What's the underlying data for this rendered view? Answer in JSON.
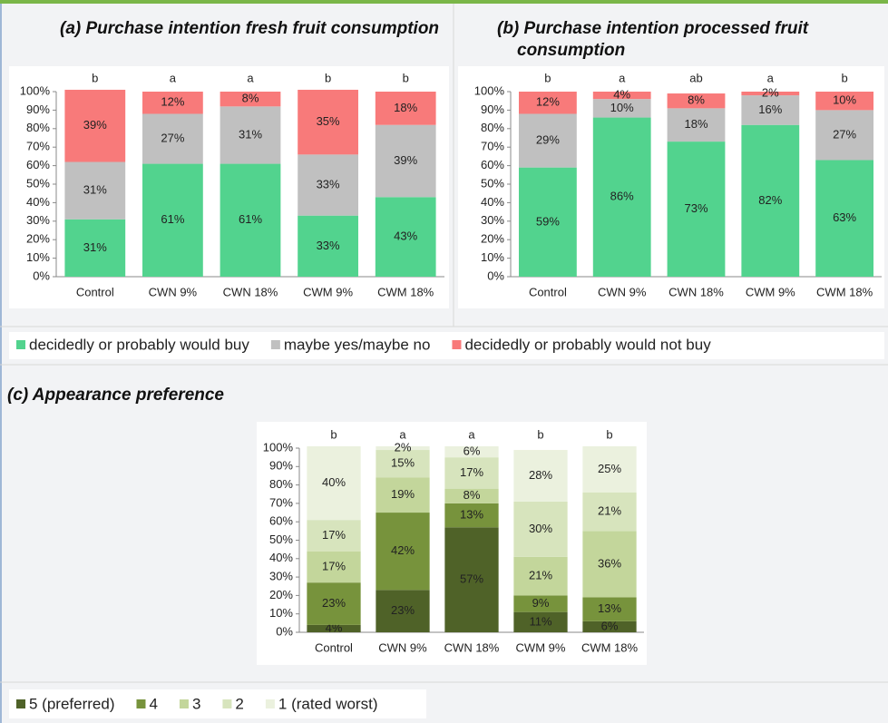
{
  "chart_data": [
    {
      "type": "bar",
      "stacked": true,
      "title": "(a) Purchase intention fresh fruit consumption",
      "categories": [
        "Control",
        "CWN 9%",
        "CWN 18%",
        "CWM 9%",
        "CWM 18%"
      ],
      "annotations": [
        "b",
        "a",
        "a",
        "b",
        "b"
      ],
      "series": [
        {
          "name": "decidedly or probably would buy",
          "color": "#52d38e",
          "values": [
            31,
            61,
            61,
            33,
            43
          ],
          "value_labels": [
            "31%",
            "61%",
            "61%",
            "33%",
            "43%"
          ]
        },
        {
          "name": "maybe yes/maybe no",
          "color": "#c0c0c0",
          "values": [
            31,
            27,
            31,
            33,
            39
          ],
          "value_labels": [
            "31%",
            "27%",
            "31%",
            "33%",
            "39%"
          ]
        },
        {
          "name": "decidedly or probably would not buy",
          "color": "#f87a7a",
          "values": [
            39,
            12,
            8,
            35,
            18
          ],
          "value_labels": [
            "39%",
            "12%",
            "8%",
            "35%",
            "18%"
          ]
        }
      ],
      "ylim": [
        0,
        100
      ],
      "yticks": [
        {
          "value": 0,
          "label": "0%"
        },
        {
          "value": 10,
          "label": "10%"
        },
        {
          "value": 20,
          "label": "20%"
        },
        {
          "value": 30,
          "label": "30%"
        },
        {
          "value": 40,
          "label": "40%"
        },
        {
          "value": 50,
          "label": "50%"
        },
        {
          "value": 60,
          "label": "60%"
        },
        {
          "value": 70,
          "label": "70%"
        },
        {
          "value": 80,
          "label": "80%"
        },
        {
          "value": 90,
          "label": "90%"
        },
        {
          "value": 100,
          "label": "100%"
        }
      ]
    },
    {
      "type": "bar",
      "stacked": true,
      "title": "(b) Purchase intention processed fruit consumption",
      "categories": [
        "Control",
        "CWN 9%",
        "CWN 18%",
        "CWM 9%",
        "CWM 18%"
      ],
      "annotations": [
        "b",
        "a",
        "ab",
        "a",
        "b"
      ],
      "series": [
        {
          "color": "#52d38e",
          "values": [
            59,
            86,
            73,
            82,
            63
          ],
          "value_labels": [
            "59%",
            "86%",
            "73%",
            "82%",
            "63%"
          ]
        },
        {
          "color": "#c0c0c0",
          "values": [
            29,
            10,
            18,
            16,
            27
          ],
          "value_labels": [
            "29%",
            "10%",
            "18%",
            "16%",
            "27%"
          ]
        },
        {
          "color": "#f87a7a",
          "values": [
            12,
            4,
            8,
            2,
            10
          ],
          "value_labels": [
            "12%",
            "4%",
            "8%",
            "2%",
            "10%"
          ]
        }
      ],
      "ylim": [
        0,
        100
      ],
      "yticks": [
        {
          "value": 0,
          "label": "0%"
        },
        {
          "value": 10,
          "label": "10%"
        },
        {
          "value": 20,
          "label": "20%"
        },
        {
          "value": 30,
          "label": "30%"
        },
        {
          "value": 40,
          "label": "40%"
        },
        {
          "value": 50,
          "label": "50%"
        },
        {
          "value": 60,
          "label": "60%"
        },
        {
          "value": 70,
          "label": "70%"
        },
        {
          "value": 80,
          "label": "80%"
        },
        {
          "value": 90,
          "label": "90%"
        },
        {
          "value": 100,
          "label": "100%"
        }
      ]
    },
    {
      "type": "bar",
      "stacked": true,
      "title": "(c) Appearance preference",
      "categories": [
        "Control",
        "CWN 9%",
        "CWN 18%",
        "CWM 9%",
        "CWM 18%"
      ],
      "annotations": [
        "b",
        "a",
        "a",
        "b",
        "b"
      ],
      "series": [
        {
          "name": "5 (preferred)",
          "color": "#4f6228",
          "values": [
            4,
            23,
            57,
            11,
            6
          ],
          "value_labels": [
            "4%",
            "23%",
            "57%",
            "11%",
            "6%"
          ]
        },
        {
          "name": "4",
          "color": "#77933c",
          "values": [
            23,
            42,
            13,
            9,
            13
          ],
          "value_labels": [
            "23%",
            "42%",
            "13%",
            "9%",
            "13%"
          ]
        },
        {
          "name": "3",
          "color": "#c3d69b",
          "values": [
            17,
            19,
            8,
            21,
            36
          ],
          "value_labels": [
            "17%",
            "19%",
            "8%",
            "21%",
            "36%"
          ]
        },
        {
          "name": "2",
          "color": "#d7e4bd",
          "values": [
            17,
            15,
            17,
            30,
            21
          ],
          "value_labels": [
            "17%",
            "15%",
            "17%",
            "30%",
            "21%"
          ]
        },
        {
          "name": "1 (rated worst)",
          "color": "#ebf1de",
          "values": [
            40,
            2,
            6,
            28,
            25
          ],
          "value_labels": [
            "40%",
            "2%",
            "6%",
            "28%",
            "25%"
          ]
        }
      ],
      "ylim": [
        0,
        100
      ],
      "yticks": [
        {
          "value": 0,
          "label": "0%"
        },
        {
          "value": 10,
          "label": "10%"
        },
        {
          "value": 20,
          "label": "20%"
        },
        {
          "value": 30,
          "label": "30%"
        },
        {
          "value": 40,
          "label": "40%"
        },
        {
          "value": 50,
          "label": "50%"
        },
        {
          "value": 60,
          "label": "60%"
        },
        {
          "value": 70,
          "label": "70%"
        },
        {
          "value": 80,
          "label": "80%"
        },
        {
          "value": 90,
          "label": "90%"
        },
        {
          "value": 100,
          "label": "100%"
        }
      ]
    }
  ]
}
